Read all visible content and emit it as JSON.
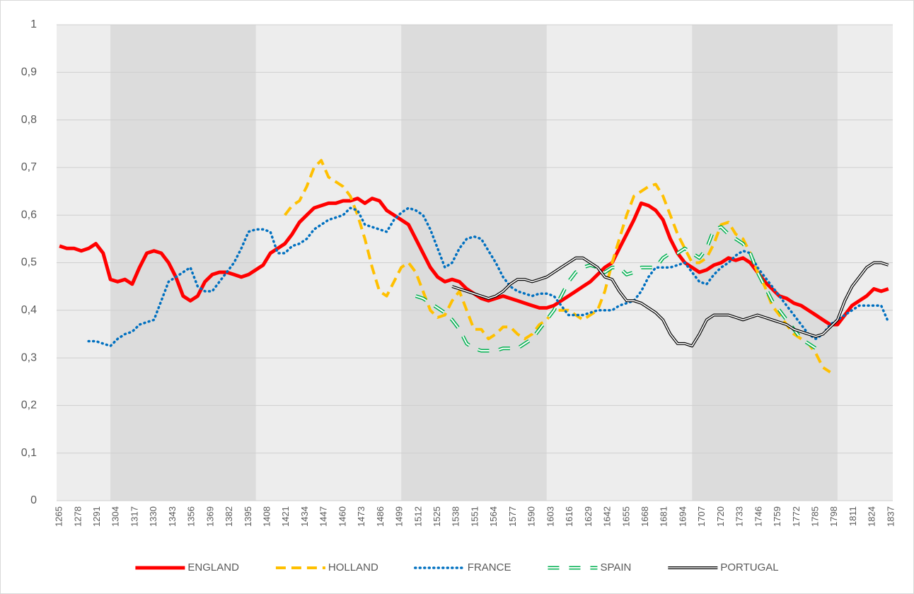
{
  "chart_data": {
    "type": "line",
    "x": [
      1265,
      1270,
      1275,
      1280,
      1285,
      1290,
      1295,
      1300,
      1305,
      1310,
      1315,
      1320,
      1325,
      1330,
      1335,
      1340,
      1345,
      1350,
      1355,
      1360,
      1365,
      1370,
      1375,
      1380,
      1385,
      1390,
      1395,
      1400,
      1405,
      1410,
      1415,
      1420,
      1425,
      1430,
      1435,
      1440,
      1445,
      1450,
      1455,
      1460,
      1465,
      1470,
      1475,
      1480,
      1485,
      1490,
      1495,
      1500,
      1505,
      1510,
      1515,
      1520,
      1525,
      1530,
      1535,
      1540,
      1545,
      1550,
      1555,
      1560,
      1565,
      1570,
      1575,
      1580,
      1585,
      1590,
      1595,
      1600,
      1605,
      1610,
      1615,
      1620,
      1625,
      1630,
      1635,
      1640,
      1645,
      1650,
      1655,
      1660,
      1665,
      1670,
      1675,
      1680,
      1685,
      1690,
      1695,
      1700,
      1705,
      1710,
      1715,
      1720,
      1725,
      1730,
      1735,
      1740,
      1745,
      1750,
      1755,
      1760,
      1765,
      1770,
      1775,
      1780,
      1785,
      1790,
      1795,
      1800,
      1805,
      1810,
      1815,
      1820,
      1825,
      1830,
      1835
    ],
    "xlim": [
      1263,
      1838
    ],
    "xticks": [
      1265,
      1278,
      1291,
      1304,
      1317,
      1330,
      1343,
      1356,
      1369,
      1382,
      1395,
      1408,
      1421,
      1434,
      1447,
      1460,
      1473,
      1486,
      1499,
      1512,
      1525,
      1538,
      1551,
      1564,
      1577,
      1590,
      1603,
      1616,
      1629,
      1642,
      1655,
      1668,
      1681,
      1694,
      1707,
      1720,
      1733,
      1746,
      1759,
      1772,
      1785,
      1798,
      1811,
      1824,
      1837
    ],
    "ylim": [
      0,
      1
    ],
    "yticks": [
      0,
      {
        "value": 0.1,
        "label": "0,1"
      },
      {
        "value": 0.2,
        "label": "0,2"
      },
      {
        "value": 0.3,
        "label": "0,3"
      },
      {
        "value": 0.4,
        "label": "0,4"
      },
      {
        "value": 0.5,
        "label": "0,5"
      },
      {
        "value": 0.6,
        "label": "0,6"
      },
      {
        "value": 0.7,
        "label": "0,7"
      },
      {
        "value": 0.8,
        "label": "0,8"
      },
      {
        "value": 0.9,
        "label": "0,9"
      },
      1
    ],
    "grid": true,
    "bands": [
      [
        1300,
        1400
      ],
      [
        1500,
        1600
      ],
      [
        1700,
        1800
      ]
    ],
    "legend": "bottom",
    "series": [
      {
        "name": "ENGLAND",
        "color": "#ff0000",
        "style": "solid",
        "values": [
          0.535,
          0.53,
          0.53,
          0.525,
          0.53,
          0.54,
          0.52,
          0.465,
          0.46,
          0.465,
          0.455,
          0.49,
          0.52,
          0.525,
          0.52,
          0.5,
          0.47,
          0.43,
          0.42,
          0.43,
          0.46,
          0.475,
          0.48,
          0.48,
          0.475,
          0.47,
          0.475,
          0.485,
          0.495,
          0.52,
          0.53,
          0.54,
          0.56,
          0.585,
          0.6,
          0.615,
          0.62,
          0.625,
          0.625,
          0.63,
          0.63,
          0.635,
          0.625,
          0.635,
          0.63,
          0.61,
          0.6,
          0.59,
          0.58,
          0.55,
          0.52,
          0.49,
          0.47,
          0.46,
          0.465,
          0.46,
          0.445,
          0.435,
          0.425,
          0.42,
          0.425,
          0.43,
          0.425,
          0.42,
          0.415,
          0.41,
          0.405,
          0.405,
          0.41,
          0.42,
          0.43,
          0.44,
          0.45,
          0.46,
          0.475,
          0.49,
          0.5,
          0.53,
          0.56,
          0.59,
          0.625,
          0.62,
          0.61,
          0.59,
          0.55,
          0.52,
          0.5,
          0.49,
          0.48,
          0.485,
          0.495,
          0.5,
          0.51,
          0.505,
          0.51,
          0.5,
          0.48,
          0.46,
          0.445,
          0.43,
          0.425,
          0.415,
          0.41,
          0.4,
          0.39,
          0.38,
          0.37,
          0.37,
          0.39,
          0.41,
          0.42,
          0.43,
          0.445,
          0.44,
          0.445
        ]
      },
      {
        "name": "HOLLAND",
        "color": "#ffc000",
        "style": "dashed",
        "values": [
          null,
          null,
          null,
          null,
          null,
          null,
          null,
          null,
          null,
          null,
          null,
          null,
          null,
          null,
          null,
          null,
          null,
          null,
          null,
          null,
          null,
          null,
          null,
          null,
          null,
          null,
          null,
          null,
          null,
          null,
          null,
          0.6,
          0.62,
          0.63,
          0.66,
          0.7,
          0.715,
          0.68,
          0.67,
          0.66,
          0.64,
          0.6,
          0.55,
          0.49,
          0.44,
          0.43,
          0.46,
          0.49,
          0.5,
          0.48,
          0.44,
          0.4,
          0.385,
          0.39,
          0.42,
          0.44,
          0.4,
          0.36,
          0.36,
          0.34,
          0.35,
          0.365,
          0.365,
          0.35,
          0.34,
          0.35,
          0.37,
          0.38,
          0.4,
          0.4,
          0.4,
          0.39,
          0.38,
          0.39,
          0.4,
          0.44,
          0.5,
          0.55,
          0.6,
          0.64,
          0.65,
          0.66,
          0.665,
          0.64,
          0.6,
          0.56,
          0.53,
          0.5,
          0.5,
          0.51,
          0.54,
          0.58,
          0.585,
          0.56,
          0.55,
          0.52,
          0.48,
          0.45,
          0.41,
          0.39,
          0.37,
          0.35,
          0.34,
          0.33,
          0.31,
          0.28,
          0.27,
          null,
          null,
          null,
          null,
          null,
          null,
          null,
          null
        ]
      },
      {
        "name": "FRANCE",
        "color": "#0070c0",
        "style": "dotted",
        "values": [
          null,
          null,
          null,
          null,
          0.335,
          0.335,
          0.33,
          0.325,
          0.34,
          0.35,
          0.355,
          0.37,
          0.375,
          0.38,
          0.42,
          0.46,
          0.47,
          0.48,
          0.49,
          0.45,
          0.44,
          0.44,
          0.46,
          0.48,
          0.5,
          0.53,
          0.565,
          0.57,
          0.57,
          0.565,
          0.52,
          0.52,
          0.535,
          0.54,
          0.55,
          0.57,
          0.58,
          0.59,
          0.595,
          0.6,
          0.615,
          0.61,
          0.58,
          0.575,
          0.57,
          0.565,
          0.59,
          0.605,
          0.615,
          0.61,
          0.6,
          0.57,
          0.53,
          0.49,
          0.5,
          0.53,
          0.55,
          0.555,
          0.55,
          0.525,
          0.5,
          0.47,
          0.45,
          0.44,
          0.435,
          0.43,
          0.435,
          0.435,
          0.43,
          0.41,
          0.39,
          0.39,
          0.39,
          0.395,
          0.4,
          0.4,
          0.4,
          0.41,
          0.415,
          0.42,
          0.44,
          0.47,
          0.49,
          0.49,
          0.49,
          0.495,
          0.5,
          0.48,
          0.46,
          0.455,
          0.475,
          0.49,
          0.5,
          0.515,
          0.525,
          0.52,
          0.49,
          0.47,
          0.45,
          0.43,
          0.41,
          0.39,
          0.37,
          0.35,
          0.34,
          0.35,
          0.37,
          0.38,
          0.39,
          0.4,
          0.41,
          0.41,
          0.41,
          0.41,
          0.375
        ]
      },
      {
        "name": "SPAIN",
        "color": "#00b050",
        "style": "double-dashed",
        "values": [
          null,
          null,
          null,
          null,
          null,
          null,
          null,
          null,
          null,
          null,
          null,
          null,
          null,
          null,
          null,
          null,
          null,
          null,
          null,
          null,
          null,
          null,
          null,
          null,
          null,
          null,
          null,
          null,
          null,
          null,
          null,
          null,
          null,
          null,
          null,
          null,
          null,
          null,
          null,
          null,
          null,
          null,
          null,
          null,
          null,
          null,
          null,
          null,
          null,
          0.43,
          0.425,
          0.415,
          0.405,
          0.395,
          0.38,
          0.36,
          0.33,
          0.32,
          0.315,
          0.315,
          0.315,
          0.32,
          0.32,
          0.32,
          0.33,
          0.34,
          0.36,
          0.38,
          0.4,
          0.43,
          0.46,
          0.48,
          0.49,
          0.495,
          0.49,
          0.48,
          0.49,
          0.49,
          0.475,
          0.48,
          0.49,
          0.49,
          0.49,
          0.51,
          0.52,
          0.52,
          0.53,
          0.52,
          0.51,
          0.53,
          0.57,
          0.575,
          0.56,
          0.55,
          0.54,
          0.52,
          0.48,
          0.45,
          0.42,
          0.4,
          0.38,
          0.36,
          0.34,
          0.33,
          0.32,
          0.32,
          null,
          null,
          null,
          null,
          null,
          null,
          null,
          null,
          null
        ]
      },
      {
        "name": "PORTUGAL",
        "color": "#000000",
        "style": "double",
        "values": [
          null,
          null,
          null,
          null,
          null,
          null,
          null,
          null,
          null,
          null,
          null,
          null,
          null,
          null,
          null,
          null,
          null,
          null,
          null,
          null,
          null,
          null,
          null,
          null,
          null,
          null,
          null,
          null,
          null,
          null,
          null,
          null,
          null,
          null,
          null,
          null,
          null,
          null,
          null,
          null,
          null,
          null,
          null,
          null,
          null,
          null,
          null,
          null,
          null,
          null,
          null,
          null,
          null,
          null,
          0.45,
          0.445,
          0.44,
          0.435,
          0.43,
          0.425,
          0.43,
          0.44,
          0.455,
          0.465,
          0.465,
          0.46,
          0.465,
          0.47,
          0.48,
          0.49,
          0.5,
          0.51,
          0.51,
          0.5,
          0.49,
          0.47,
          0.465,
          0.44,
          0.42,
          0.42,
          0.415,
          0.405,
          0.395,
          0.38,
          0.35,
          0.33,
          0.33,
          0.325,
          0.35,
          0.38,
          0.39,
          0.39,
          0.39,
          0.385,
          0.38,
          0.385,
          0.39,
          0.385,
          0.38,
          0.375,
          0.37,
          0.36,
          0.355,
          0.35,
          0.345,
          0.35,
          0.365,
          0.38,
          0.42,
          0.45,
          0.47,
          0.49,
          0.5,
          0.5,
          0.495
        ]
      }
    ]
  }
}
